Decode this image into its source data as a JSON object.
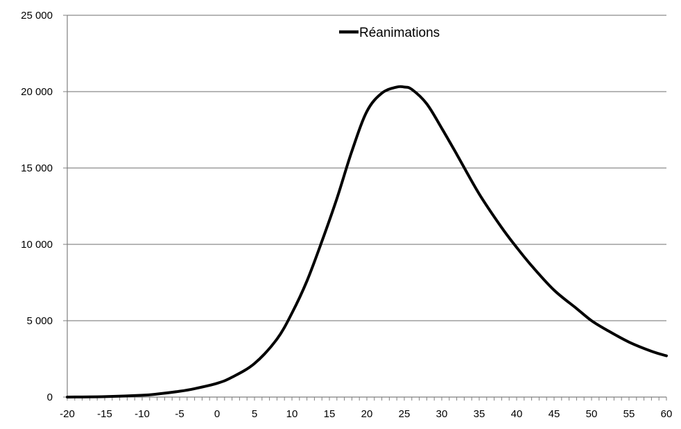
{
  "chart_data": {
    "type": "line",
    "title": "",
    "xlabel": "",
    "ylabel": "",
    "xlim": [
      -20,
      60
    ],
    "ylim": [
      0,
      25000
    ],
    "x_ticks": [
      -20,
      -15,
      -10,
      -5,
      0,
      5,
      10,
      15,
      20,
      25,
      30,
      35,
      40,
      45,
      50,
      55,
      60
    ],
    "x_tick_labels": [
      "-20",
      "-15",
      "-10",
      "-5",
      "0",
      "5",
      "10",
      "15",
      "20",
      "25",
      "30",
      "35",
      "40",
      "45",
      "50",
      "55",
      "60"
    ],
    "y_ticks": [
      0,
      5000,
      10000,
      15000,
      20000,
      25000
    ],
    "y_tick_labels": [
      "0",
      "5 000",
      "10 000",
      "15 000",
      "20 000",
      "25 000"
    ],
    "grid": "horizontal",
    "legend_position": "top-center",
    "series": [
      {
        "name": "Réanimations",
        "color": "#000000",
        "x": [
          -20,
          -15,
          -10,
          -8,
          -5,
          -3,
          0,
          2,
          5,
          8,
          10,
          12,
          14,
          16,
          18,
          20,
          22,
          24,
          25,
          26,
          28,
          30,
          32,
          35,
          38,
          40,
          42,
          45,
          48,
          50,
          52,
          55,
          58,
          60
        ],
        "y": [
          0,
          30,
          120,
          200,
          380,
          550,
          900,
          1300,
          2200,
          3800,
          5500,
          7600,
          10200,
          13000,
          16100,
          18700,
          19900,
          20300,
          20300,
          20150,
          19200,
          17600,
          15900,
          13300,
          11100,
          9800,
          8600,
          7000,
          5800,
          5000,
          4400,
          3600,
          3000,
          2700
        ]
      }
    ]
  }
}
